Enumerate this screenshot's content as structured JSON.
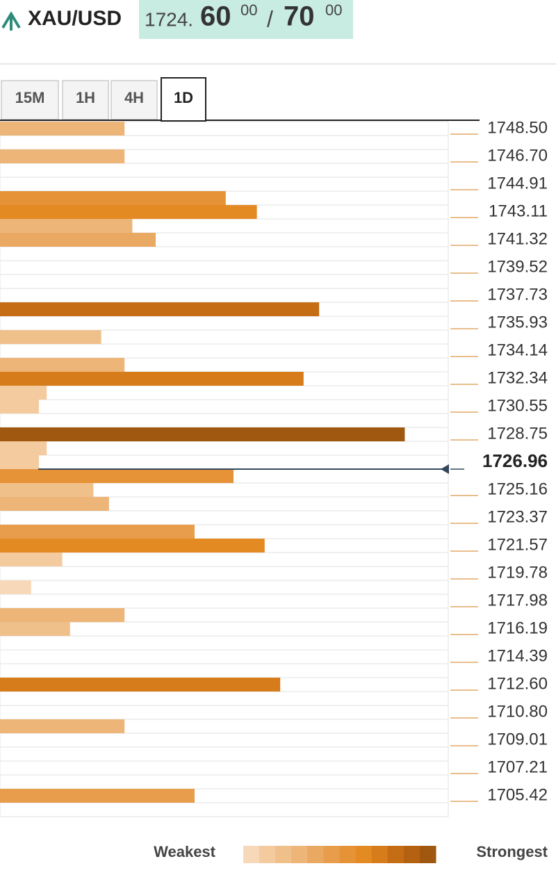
{
  "header": {
    "symbol": "XAU/USD",
    "bid_main": "1724.",
    "bid_big": "60",
    "bid_small": "00",
    "separator": "/",
    "ask_big": "70",
    "ask_small": "00"
  },
  "tabs": [
    "15M",
    "1H",
    "4H",
    "1D"
  ],
  "active_tab": 3,
  "levels": {
    "strength": [
      16,
      null,
      16,
      null,
      null,
      29,
      33,
      17,
      20,
      null,
      null,
      null,
      null,
      41,
      null,
      13,
      null,
      16,
      39,
      6,
      5,
      null,
      52,
      6,
      5,
      30,
      12,
      14,
      null,
      25,
      34,
      8,
      null,
      4,
      null,
      16,
      9,
      null,
      null,
      null,
      36,
      null,
      null,
      16,
      null,
      null,
      null,
      null,
      25,
      null
    ],
    "price_labels": [
      "1748.50",
      "1746.70",
      "1744.91",
      "1743.11",
      "1741.32",
      "1739.52",
      "1737.73",
      "1735.93",
      "1734.14",
      "1732.34",
      "1730.55",
      "1728.75",
      "1726.96",
      "1725.16",
      "1723.37",
      "1721.57",
      "1719.78",
      "1717.98",
      "1716.19",
      "1714.39",
      "1712.60",
      "1710.80",
      "1709.01",
      "1707.21",
      "1705.42"
    ],
    "current_price": 1726.96
  },
  "legend": {
    "weakest": "Weakest",
    "strongest": "Strongest",
    "colors": [
      "#f7d9b9",
      "#f3cb9f",
      "#f0c08b",
      "#edb577",
      "#eaa962",
      "#e89d4c",
      "#e69237",
      "#e48a23",
      "#d67c1b",
      "#c56d15",
      "#b46212",
      "#a0570f"
    ]
  }
}
